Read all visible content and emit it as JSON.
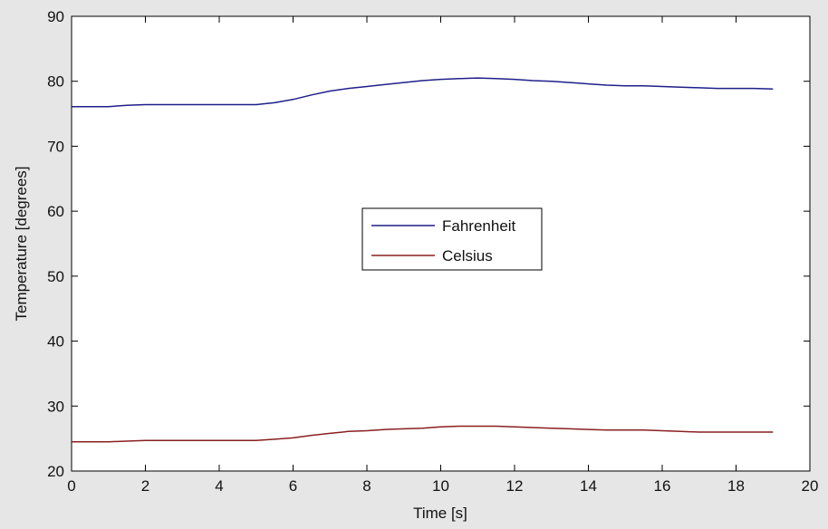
{
  "chart_data": {
    "type": "line",
    "xlabel": "Time [s]",
    "ylabel": "Temperature [degrees]",
    "xlim": [
      0,
      20
    ],
    "ylim": [
      20,
      90
    ],
    "xticks": [
      0,
      2,
      4,
      6,
      8,
      10,
      12,
      14,
      16,
      18,
      20
    ],
    "yticks": [
      20,
      30,
      40,
      50,
      60,
      70,
      80,
      90
    ],
    "grid": false,
    "legend_position": "center",
    "series": [
      {
        "name": "Fahrenheit",
        "color": "#1f1f8a",
        "x": [
          0,
          0.5,
          1,
          1.5,
          2,
          3,
          4,
          5,
          5.5,
          6,
          6.5,
          7,
          7.5,
          8,
          8.5,
          9,
          9.5,
          10,
          10.5,
          11,
          11.5,
          12,
          12.5,
          13,
          13.5,
          14,
          14.5,
          15,
          15.5,
          16,
          16.5,
          17,
          17.5,
          18,
          18.5,
          19
        ],
        "values": [
          76.1,
          76.1,
          76.1,
          76.3,
          76.4,
          76.4,
          76.4,
          76.4,
          76.7,
          77.2,
          77.9,
          78.5,
          78.9,
          79.2,
          79.5,
          79.8,
          80.1,
          80.3,
          80.4,
          80.5,
          80.4,
          80.3,
          80.1,
          80.0,
          79.8,
          79.6,
          79.4,
          79.3,
          79.3,
          79.2,
          79.1,
          79.0,
          78.9,
          78.9,
          78.9,
          78.8
        ]
      },
      {
        "name": "Celsius",
        "color": "#8a1f1f",
        "x": [
          0,
          0.5,
          1,
          1.5,
          2,
          3,
          4,
          5,
          5.5,
          6,
          6.5,
          7,
          7.5,
          8,
          8.5,
          9,
          9.5,
          10,
          10.5,
          11,
          11.5,
          12,
          12.5,
          13,
          13.5,
          14,
          14.5,
          15,
          15.5,
          16,
          16.5,
          17,
          17.5,
          18,
          18.5,
          19
        ],
        "values": [
          24.5,
          24.5,
          24.5,
          24.6,
          24.7,
          24.7,
          24.7,
          24.7,
          24.9,
          25.1,
          25.5,
          25.8,
          26.1,
          26.2,
          26.4,
          26.5,
          26.6,
          26.8,
          26.9,
          26.9,
          26.9,
          26.8,
          26.7,
          26.6,
          26.5,
          26.4,
          26.3,
          26.3,
          26.3,
          26.2,
          26.1,
          26.0,
          26.0,
          26.0,
          26.0,
          26.0
        ]
      }
    ]
  }
}
